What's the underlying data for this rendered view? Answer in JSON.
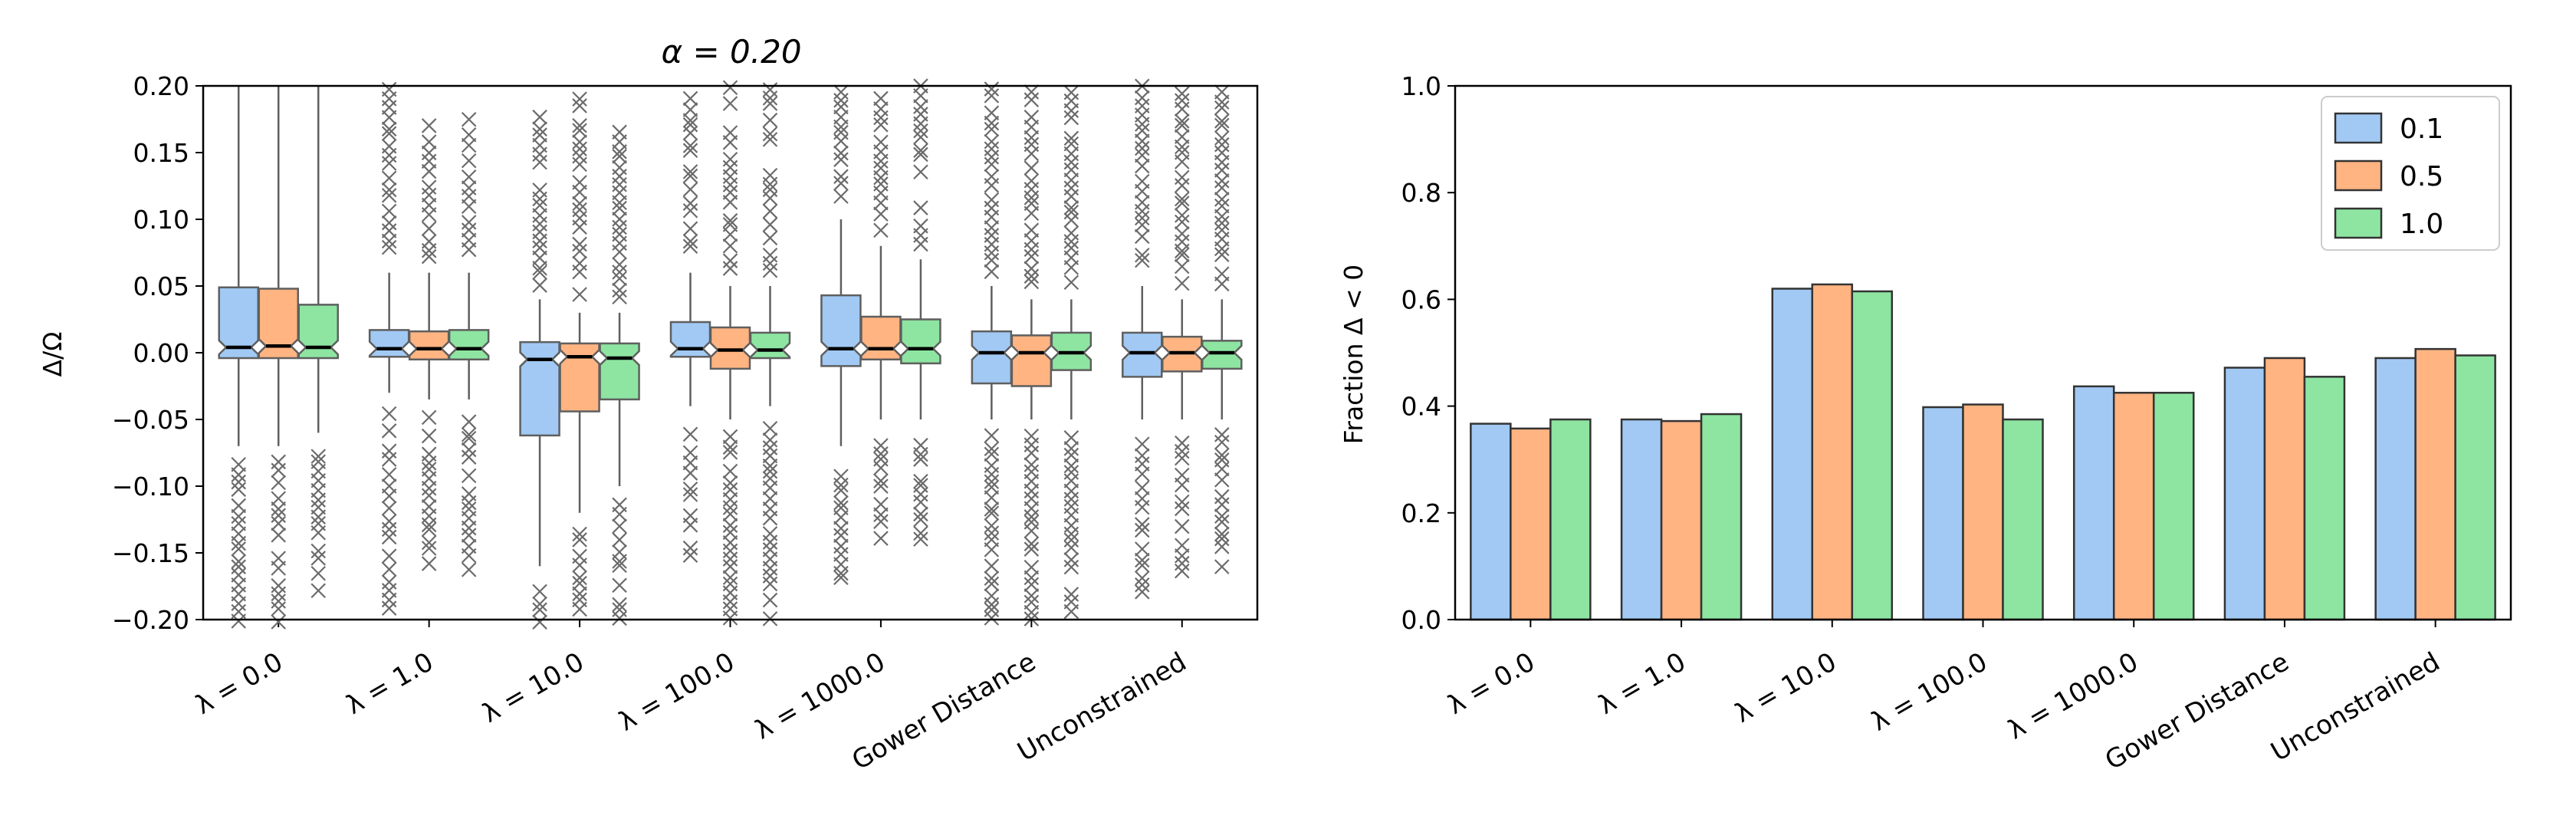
{
  "colors": {
    "series": [
      "#a1c9f4",
      "#ffb482",
      "#8de5a1"
    ],
    "box_edge": "#5f5f5f",
    "bar_edge": "#333333",
    "outlier": "#6b6b6b",
    "median": "#000000"
  },
  "chart_data": [
    {
      "type": "box",
      "title": "α = 0.20",
      "ylabel": "Δ/Ω",
      "ylim": [
        -0.2,
        0.2
      ],
      "yticks": [
        -0.2,
        -0.15,
        -0.1,
        -0.05,
        0.0,
        0.05,
        0.1,
        0.15,
        0.2
      ],
      "ytick_labels": [
        "−0.20",
        "−0.15",
        "−0.10",
        "−0.05",
        "0.00",
        "0.05",
        "0.10",
        "0.15",
        "0.20"
      ],
      "categories": [
        "λ = 0.0",
        "λ = 1.0",
        "λ = 10.0",
        "λ = 100.0",
        "λ = 1000.0",
        "Gower Distance",
        "Unconstrained"
      ],
      "series_names": [
        "0.1",
        "0.5",
        "1.0"
      ],
      "boxes": [
        [
          {
            "q1": -0.004,
            "med": 0.004,
            "q3": 0.049,
            "wlo": -0.07,
            "whi": 0.2,
            "ofrom": -0.2,
            "oto": -0.08
          },
          {
            "q1": -0.004,
            "med": 0.005,
            "q3": 0.048,
            "wlo": -0.07,
            "whi": 0.2,
            "ofrom": -0.2,
            "oto": -0.08
          },
          {
            "q1": -0.004,
            "med": 0.004,
            "q3": 0.036,
            "wlo": -0.06,
            "whi": 0.2,
            "ofrom": -0.18,
            "oto": -0.075
          }
        ],
        [
          {
            "q1": -0.003,
            "med": 0.003,
            "q3": 0.017,
            "wlo": -0.03,
            "whi": 0.06,
            "ofrom": -0.19,
            "oto": 0.2
          },
          {
            "q1": -0.005,
            "med": 0.003,
            "q3": 0.016,
            "wlo": -0.035,
            "whi": 0.06,
            "ofrom": -0.16,
            "oto": 0.18
          },
          {
            "q1": -0.005,
            "med": 0.003,
            "q3": 0.017,
            "wlo": -0.035,
            "whi": 0.06,
            "ofrom": -0.17,
            "oto": 0.18
          }
        ],
        [
          {
            "q1": -0.062,
            "med": -0.005,
            "q3": 0.008,
            "wlo": -0.16,
            "whi": 0.04,
            "ofrom": -0.2,
            "oto": 0.19
          },
          {
            "q1": -0.044,
            "med": -0.003,
            "q3": 0.007,
            "wlo": -0.12,
            "whi": 0.03,
            "ofrom": -0.2,
            "oto": 0.2
          },
          {
            "q1": -0.035,
            "med": -0.004,
            "q3": 0.007,
            "wlo": -0.1,
            "whi": 0.03,
            "ofrom": -0.2,
            "oto": 0.17
          }
        ],
        [
          {
            "q1": -0.003,
            "med": 0.003,
            "q3": 0.023,
            "wlo": -0.04,
            "whi": 0.06,
            "ofrom": -0.16,
            "oto": 0.2
          },
          {
            "q1": -0.012,
            "med": 0.002,
            "q3": 0.019,
            "wlo": -0.05,
            "whi": 0.05,
            "ofrom": -0.2,
            "oto": 0.2
          },
          {
            "q1": -0.004,
            "med": 0.002,
            "q3": 0.015,
            "wlo": -0.04,
            "whi": 0.05,
            "ofrom": -0.2,
            "oto": 0.2
          }
        ],
        [
          {
            "q1": -0.01,
            "med": 0.003,
            "q3": 0.043,
            "wlo": -0.07,
            "whi": 0.1,
            "ofrom": -0.17,
            "oto": 0.2
          },
          {
            "q1": -0.005,
            "med": 0.003,
            "q3": 0.027,
            "wlo": -0.05,
            "whi": 0.08,
            "ofrom": -0.14,
            "oto": 0.2
          },
          {
            "q1": -0.008,
            "med": 0.003,
            "q3": 0.025,
            "wlo": -0.05,
            "whi": 0.07,
            "ofrom": -0.14,
            "oto": 0.2
          }
        ],
        [
          {
            "q1": -0.023,
            "med": 0.0,
            "q3": 0.016,
            "wlo": -0.05,
            "whi": 0.05,
            "ofrom": -0.2,
            "oto": 0.2
          },
          {
            "q1": -0.025,
            "med": 0.0,
            "q3": 0.013,
            "wlo": -0.05,
            "whi": 0.04,
            "ofrom": -0.2,
            "oto": 0.2
          },
          {
            "q1": -0.013,
            "med": 0.0,
            "q3": 0.015,
            "wlo": -0.05,
            "whi": 0.04,
            "ofrom": -0.2,
            "oto": 0.2
          }
        ],
        [
          {
            "q1": -0.018,
            "med": 0.0,
            "q3": 0.015,
            "wlo": -0.05,
            "whi": 0.05,
            "ofrom": -0.18,
            "oto": 0.2
          },
          {
            "q1": -0.014,
            "med": 0.0,
            "q3": 0.012,
            "wlo": -0.05,
            "whi": 0.04,
            "ofrom": -0.17,
            "oto": 0.2
          },
          {
            "q1": -0.012,
            "med": 0.0,
            "q3": 0.009,
            "wlo": -0.05,
            "whi": 0.04,
            "ofrom": -0.16,
            "oto": 0.2
          }
        ]
      ]
    },
    {
      "type": "bar",
      "title": "",
      "xlabel": "",
      "ylabel": "Fraction Δ < 0",
      "ylim": [
        0.0,
        1.0
      ],
      "yticks": [
        0.0,
        0.2,
        0.4,
        0.6,
        0.8,
        1.0
      ],
      "ytick_labels": [
        "0.0",
        "0.2",
        "0.4",
        "0.6",
        "0.8",
        "1.0"
      ],
      "categories": [
        "λ = 0.0",
        "λ = 1.0",
        "λ = 10.0",
        "λ = 100.0",
        "λ = 1000.0",
        "Gower Distance",
        "Unconstrained"
      ],
      "series": [
        {
          "name": "0.1",
          "values": [
            0.367,
            0.375,
            0.62,
            0.398,
            0.437,
            0.472,
            0.49
          ]
        },
        {
          "name": "0.5",
          "values": [
            0.358,
            0.372,
            0.628,
            0.403,
            0.425,
            0.49,
            0.507
          ]
        },
        {
          "name": "1.0",
          "values": [
            0.375,
            0.385,
            0.615,
            0.375,
            0.425,
            0.455,
            0.495
          ]
        }
      ],
      "legend_position": "top-right"
    }
  ]
}
